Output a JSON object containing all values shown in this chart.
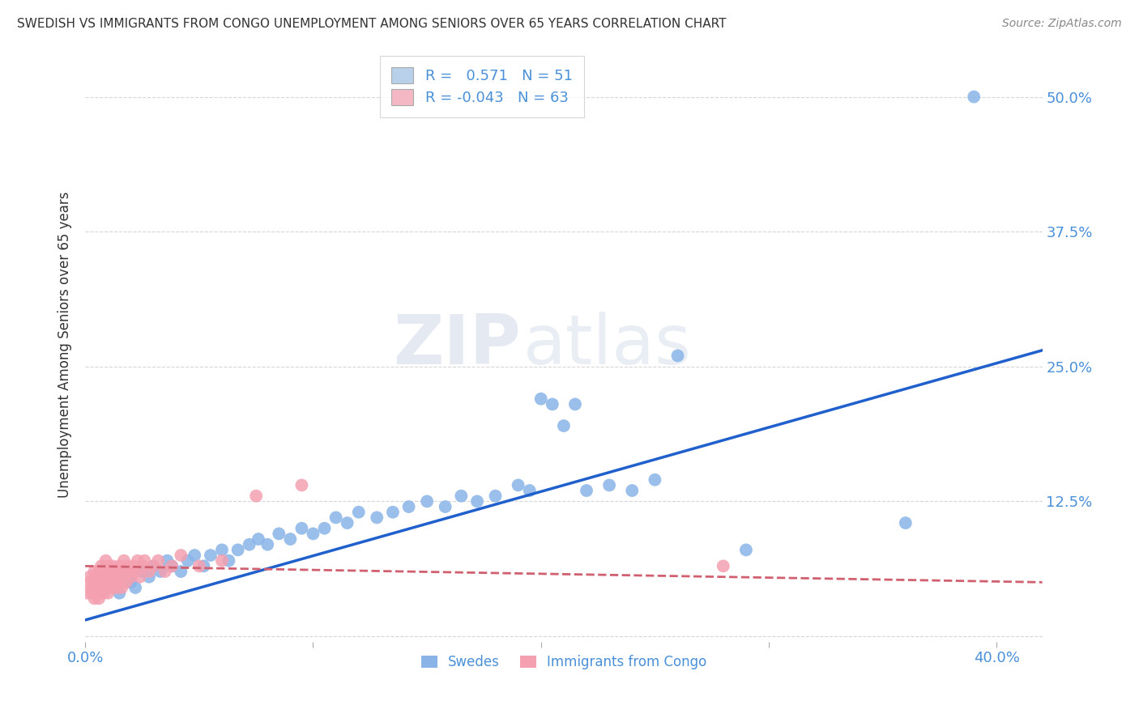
{
  "title": "SWEDISH VS IMMIGRANTS FROM CONGO UNEMPLOYMENT AMONG SENIORS OVER 65 YEARS CORRELATION CHART",
  "source": "Source: ZipAtlas.com",
  "ylabel_label": "Unemployment Among Seniors over 65 years",
  "xlim": [
    0.0,
    0.42
  ],
  "ylim": [
    -0.005,
    0.545
  ],
  "x_ticks": [
    0.0,
    0.1,
    0.2,
    0.3,
    0.4
  ],
  "x_tick_labels": [
    "0.0%",
    "",
    "",
    "",
    "40.0%"
  ],
  "y_ticks": [
    0.0,
    0.125,
    0.25,
    0.375,
    0.5
  ],
  "y_tick_labels": [
    "",
    "12.5%",
    "25.0%",
    "37.5%",
    "50.0%"
  ],
  "blue_R": 0.571,
  "blue_N": 51,
  "pink_R": -0.043,
  "pink_N": 63,
  "blue_color": "#8ab4e8",
  "blue_line_color": "#2060cc",
  "pink_color": "#f4a0b0",
  "pink_line_color": "#d06070",
  "legend_blue_fill": "#b8d0ea",
  "legend_pink_fill": "#f4b8c4",
  "watermark_zip": "ZIP",
  "watermark_atlas": "atlas",
  "background_color": "#ffffff",
  "grid_color": "#cccccc",
  "title_color": "#333333",
  "axis_label_color": "#333333",
  "tick_label_color": "#4a90d9",
  "legend_text_color": "#4a90d9",
  "blue_scatter_x": [
    0.015,
    0.018,
    0.02,
    0.022,
    0.025,
    0.028,
    0.03,
    0.033,
    0.036,
    0.038,
    0.042,
    0.045,
    0.048,
    0.052,
    0.055,
    0.06,
    0.063,
    0.067,
    0.072,
    0.076,
    0.08,
    0.085,
    0.09,
    0.095,
    0.1,
    0.105,
    0.11,
    0.115,
    0.12,
    0.128,
    0.135,
    0.142,
    0.15,
    0.158,
    0.165,
    0.172,
    0.18,
    0.19,
    0.195,
    0.2,
    0.205,
    0.21,
    0.215,
    0.22,
    0.23,
    0.24,
    0.25,
    0.26,
    0.29,
    0.36,
    0.39
  ],
  "blue_scatter_y": [
    0.04,
    0.055,
    0.05,
    0.045,
    0.06,
    0.055,
    0.065,
    0.06,
    0.07,
    0.065,
    0.06,
    0.07,
    0.075,
    0.065,
    0.075,
    0.08,
    0.07,
    0.08,
    0.085,
    0.09,
    0.085,
    0.095,
    0.09,
    0.1,
    0.095,
    0.1,
    0.11,
    0.105,
    0.115,
    0.11,
    0.115,
    0.12,
    0.125,
    0.12,
    0.13,
    0.125,
    0.13,
    0.14,
    0.135,
    0.22,
    0.215,
    0.195,
    0.215,
    0.135,
    0.14,
    0.135,
    0.145,
    0.26,
    0.08,
    0.105,
    0.5
  ],
  "pink_scatter_x": [
    0.001,
    0.002,
    0.002,
    0.003,
    0.003,
    0.004,
    0.004,
    0.004,
    0.005,
    0.005,
    0.005,
    0.006,
    0.006,
    0.006,
    0.007,
    0.007,
    0.007,
    0.007,
    0.008,
    0.008,
    0.008,
    0.009,
    0.009,
    0.009,
    0.01,
    0.01,
    0.01,
    0.011,
    0.011,
    0.012,
    0.012,
    0.012,
    0.013,
    0.013,
    0.014,
    0.014,
    0.015,
    0.015,
    0.016,
    0.016,
    0.017,
    0.017,
    0.018,
    0.018,
    0.019,
    0.02,
    0.021,
    0.022,
    0.023,
    0.024,
    0.025,
    0.026,
    0.028,
    0.03,
    0.032,
    0.035,
    0.038,
    0.042,
    0.05,
    0.06,
    0.075,
    0.095,
    0.28
  ],
  "pink_scatter_y": [
    0.04,
    0.05,
    0.055,
    0.04,
    0.045,
    0.035,
    0.05,
    0.06,
    0.04,
    0.045,
    0.055,
    0.035,
    0.045,
    0.06,
    0.04,
    0.05,
    0.055,
    0.065,
    0.04,
    0.05,
    0.06,
    0.045,
    0.055,
    0.07,
    0.04,
    0.055,
    0.065,
    0.05,
    0.06,
    0.045,
    0.055,
    0.065,
    0.05,
    0.06,
    0.045,
    0.06,
    0.05,
    0.065,
    0.045,
    0.06,
    0.055,
    0.07,
    0.05,
    0.065,
    0.06,
    0.055,
    0.065,
    0.06,
    0.07,
    0.055,
    0.065,
    0.07,
    0.06,
    0.065,
    0.07,
    0.06,
    0.065,
    0.075,
    0.065,
    0.07,
    0.13,
    0.14,
    0.065
  ],
  "blue_trendline_x": [
    0.0,
    0.42
  ],
  "blue_trendline_y": [
    0.015,
    0.265
  ],
  "pink_trendline_x": [
    0.0,
    0.42
  ],
  "pink_trendline_y": [
    0.065,
    0.05
  ]
}
